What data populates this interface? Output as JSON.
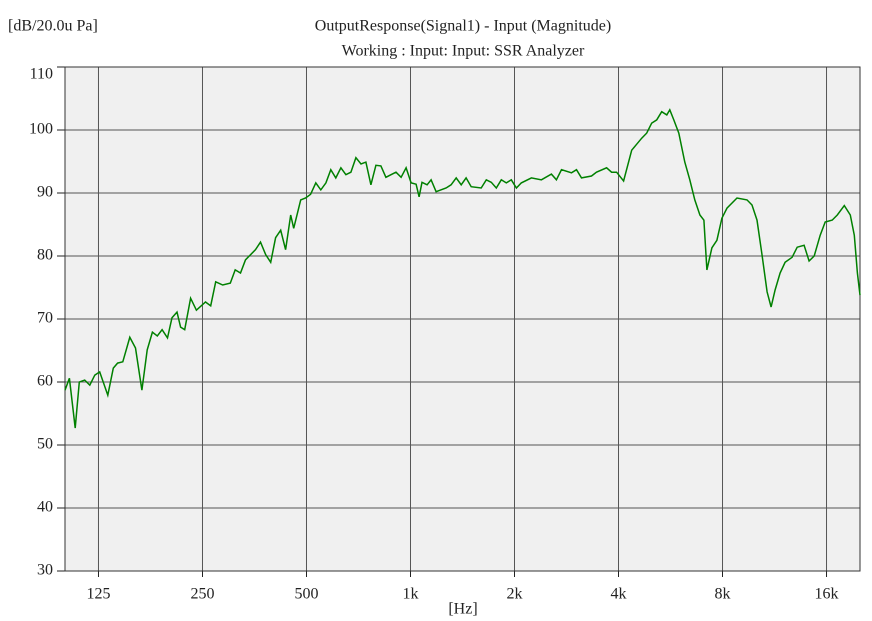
{
  "chart_data": {
    "type": "line",
    "title": "OutputResponse(Signal1) - Input (Magnitude)",
    "subtitle": "Working : Input: Input: SSR Analyzer",
    "y_label": "[dB/20.0u Pa]",
    "x_label": "[Hz]",
    "xscale": "log",
    "grid": true,
    "xlim": [
      100,
      20000
    ],
    "ylim": [
      30,
      110
    ],
    "xticks": [
      125,
      250,
      500,
      {
        "value": 1000,
        "label": "1k"
      },
      {
        "value": 2000,
        "label": "2k"
      },
      {
        "value": 4000,
        "label": "4k"
      },
      {
        "value": 8000,
        "label": "8k"
      },
      {
        "value": 16000,
        "label": "16k"
      }
    ],
    "yticks": [
      30,
      40,
      50,
      60,
      70,
      80,
      90,
      100,
      110
    ],
    "series": [
      {
        "color": "#008000",
        "x": [
          100,
          103,
          107,
          110,
          114,
          118,
          122,
          126,
          133,
          138,
          142,
          147,
          154,
          160,
          167,
          173,
          179,
          185,
          191,
          198,
          204,
          211,
          216,
          222,
          231,
          240,
          255,
          264,
          273,
          286,
          301,
          311,
          322,
          333,
          356,
          368,
          381,
          394,
          407,
          421,
          435,
          450,
          459,
          481,
          497,
          514,
          532,
          550,
          569,
          588,
          608,
          629,
          650,
          672,
          695,
          719,
          743,
          768,
          794,
          821,
          849,
          878,
          908,
          939,
          971,
          1004,
          1038,
          1059,
          1080,
          1117,
          1147,
          1186,
          1268,
          1311,
          1356,
          1402,
          1449,
          1499,
          1602,
          1657,
          1713,
          1771,
          1831,
          1894,
          1958,
          2025,
          2093,
          2238,
          2392,
          2558,
          2645,
          2735,
          2924,
          3023,
          3126,
          3342,
          3455,
          3694,
          3820,
          3950,
          4139,
          4367,
          4668,
          4827,
          4991,
          5161,
          5336,
          5518,
          5629,
          5782,
          5978,
          6223,
          6434,
          6653,
          6880,
          7066,
          7209,
          7454,
          7708,
          7970,
          8241,
          8810,
          9419,
          9739,
          10070,
          10410,
          10770,
          11060,
          11360,
          11740,
          12140,
          12720,
          13160,
          13780,
          14250,
          14740,
          15340,
          15860,
          16620,
          17190,
          18010,
          18750,
          19260,
          19650,
          20000
        ],
        "values": [
          58.7,
          60.6,
          52.7,
          60,
          60.3,
          59.5,
          61.1,
          61.6,
          57.9,
          62.2,
          63,
          63.2,
          67.1,
          65.4,
          58.7,
          65.1,
          67.9,
          67.3,
          68.3,
          67,
          70.2,
          71.1,
          68.7,
          68.3,
          73.3,
          71.4,
          72.7,
          72.1,
          75.9,
          75.4,
          75.7,
          77.8,
          77.3,
          79.4,
          81,
          82.2,
          80.2,
          79,
          82.9,
          84.1,
          81,
          86.5,
          84.4,
          88.9,
          89.2,
          89.8,
          91.6,
          90.5,
          91.6,
          93.7,
          92.4,
          94,
          92.9,
          93.3,
          95.6,
          94.6,
          94.9,
          91.3,
          94.4,
          94.3,
          92.5,
          92.9,
          93.3,
          92.5,
          94,
          91.6,
          91.4,
          89.4,
          91.7,
          91.3,
          92.1,
          90.2,
          90.8,
          91.3,
          92.4,
          91.3,
          92.4,
          91,
          90.8,
          92.1,
          91.7,
          90.8,
          92.1,
          91.6,
          92.1,
          90.8,
          91.6,
          92.4,
          92.1,
          93,
          92.1,
          93.7,
          93.2,
          93.7,
          92.4,
          92.7,
          93.3,
          94,
          93.3,
          93.3,
          91.9,
          96.8,
          98.7,
          99.5,
          101.1,
          101.6,
          102.9,
          102.4,
          103.2,
          101.6,
          99.5,
          94.9,
          92.1,
          88.9,
          86.5,
          85.7,
          77.8,
          81.3,
          82.5,
          86,
          87.6,
          89.2,
          88.9,
          88.1,
          85.7,
          80.2,
          74.3,
          71.9,
          74.6,
          77.3,
          79,
          79.8,
          81.4,
          81.7,
          79.2,
          80,
          83.3,
          85.4,
          85.7,
          86.5,
          88,
          86.5,
          83.3,
          77.3,
          73.8
        ]
      }
    ]
  }
}
